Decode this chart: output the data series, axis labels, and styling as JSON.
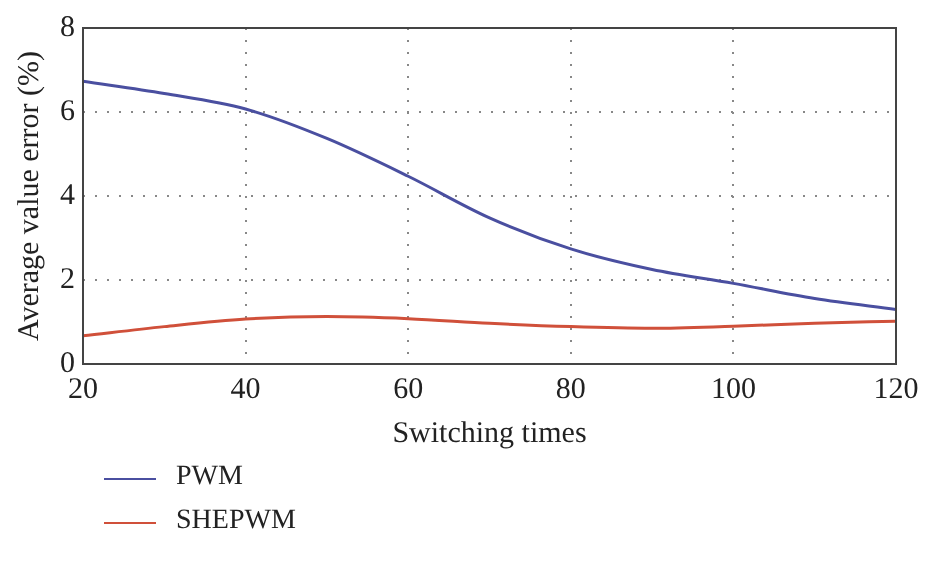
{
  "chart_data": {
    "type": "line",
    "xlabel": "Switching times",
    "ylabel": "Average value error (%)",
    "x": [
      20,
      30,
      40,
      50,
      60,
      70,
      80,
      90,
      100,
      110,
      120
    ],
    "series": [
      {
        "name": "PWM",
        "color": "#4a4fa0",
        "values": [
          6.73,
          6.44,
          6.07,
          5.37,
          4.47,
          3.48,
          2.74,
          2.25,
          1.92,
          1.56,
          1.3
        ]
      },
      {
        "name": "SHEPWM",
        "color": "#d0503a",
        "values": [
          0.67,
          0.89,
          1.07,
          1.13,
          1.08,
          0.97,
          0.89,
          0.85,
          0.9,
          0.97,
          1.02
        ]
      }
    ],
    "xlim": [
      20,
      120
    ],
    "xticks": [
      20,
      40,
      60,
      80,
      100,
      120
    ],
    "ylim": [
      0,
      8
    ],
    "yticks": [
      0,
      2,
      4,
      6,
      8
    ],
    "grid": true,
    "legend": "bottom left",
    "marker": "none",
    "line_style": "solid"
  }
}
